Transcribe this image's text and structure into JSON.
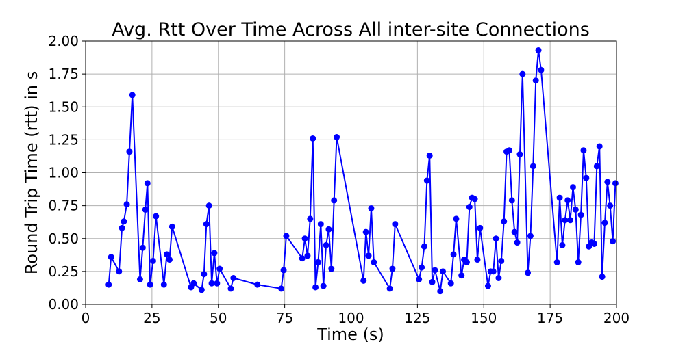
{
  "chart_data": {
    "type": "line",
    "title": "Avg. Rtt Over Time Across All inter-site Connections",
    "xlabel": "Time (s)",
    "ylabel": "Round Trip Time (rtt) in s",
    "xlim": [
      0,
      200
    ],
    "ylim": [
      0,
      2.0
    ],
    "x_ticks": [
      0,
      25,
      50,
      75,
      100,
      125,
      150,
      175,
      200
    ],
    "x_tick_labels": [
      "0",
      "25",
      "50",
      "75",
      "100",
      "125",
      "150",
      "175",
      "200"
    ],
    "y_ticks": [
      0,
      0.25,
      0.5,
      0.75,
      1.0,
      1.25,
      1.5,
      1.75,
      2.0
    ],
    "y_tick_labels": [
      "0.00",
      "0.25",
      "0.50",
      "0.75",
      "1.00",
      "1.25",
      "1.50",
      "1.75",
      "2.00"
    ],
    "grid": true,
    "legend": "none",
    "series": [
      {
        "color": "#0000ff",
        "marker": "circle",
        "points": [
          [
            8.7,
            0.15
          ],
          [
            9.6,
            0.36
          ],
          [
            12.6,
            0.25
          ],
          [
            13.7,
            0.58
          ],
          [
            14.4,
            0.63
          ],
          [
            15.5,
            0.76
          ],
          [
            16.5,
            1.16
          ],
          [
            17.6,
            1.59
          ],
          [
            20.5,
            0.19
          ],
          [
            21.5,
            0.43
          ],
          [
            22.5,
            0.72
          ],
          [
            23.3,
            0.92
          ],
          [
            24.3,
            0.15
          ],
          [
            25.4,
            0.33
          ],
          [
            26.5,
            0.67
          ],
          [
            29.5,
            0.15
          ],
          [
            30.6,
            0.38
          ],
          [
            31.6,
            0.34
          ],
          [
            32.6,
            0.59
          ],
          [
            39.7,
            0.13
          ],
          [
            40.7,
            0.16
          ],
          [
            43.7,
            0.11
          ],
          [
            44.6,
            0.23
          ],
          [
            45.5,
            0.61
          ],
          [
            46.5,
            0.75
          ],
          [
            47.5,
            0.16
          ],
          [
            48.5,
            0.39
          ],
          [
            49.5,
            0.16
          ],
          [
            50.5,
            0.27
          ],
          [
            54.7,
            0.12
          ],
          [
            55.7,
            0.2
          ],
          [
            64.7,
            0.15
          ],
          [
            73.7,
            0.12
          ],
          [
            74.6,
            0.26
          ],
          [
            75.6,
            0.52
          ],
          [
            81.6,
            0.35
          ],
          [
            82.6,
            0.5
          ],
          [
            83.6,
            0.37
          ],
          [
            84.6,
            0.65
          ],
          [
            85.6,
            1.26
          ],
          [
            86.6,
            0.13
          ],
          [
            87.6,
            0.32
          ],
          [
            88.6,
            0.61
          ],
          [
            89.6,
            0.14
          ],
          [
            90.6,
            0.45
          ],
          [
            91.6,
            0.57
          ],
          [
            92.6,
            0.27
          ],
          [
            93.6,
            0.79
          ],
          [
            94.6,
            1.27
          ],
          [
            104.7,
            0.18
          ],
          [
            105.6,
            0.55
          ],
          [
            106.6,
            0.37
          ],
          [
            107.6,
            0.73
          ],
          [
            108.6,
            0.32
          ],
          [
            114.6,
            0.12
          ],
          [
            115.6,
            0.27
          ],
          [
            116.6,
            0.61
          ],
          [
            125.6,
            0.19
          ],
          [
            126.6,
            0.28
          ],
          [
            127.6,
            0.44
          ],
          [
            128.6,
            0.94
          ],
          [
            129.6,
            1.13
          ],
          [
            130.6,
            0.17
          ],
          [
            131.6,
            0.26
          ],
          [
            133.6,
            0.1
          ],
          [
            134.6,
            0.25
          ],
          [
            137.6,
            0.16
          ],
          [
            138.6,
            0.38
          ],
          [
            139.6,
            0.65
          ],
          [
            141.6,
            0.22
          ],
          [
            142.6,
            0.34
          ],
          [
            143.6,
            0.32
          ],
          [
            144.6,
            0.74
          ],
          [
            145.6,
            0.81
          ],
          [
            146.6,
            0.8
          ],
          [
            147.6,
            0.34
          ],
          [
            148.6,
            0.58
          ],
          [
            151.6,
            0.14
          ],
          [
            152.6,
            0.25
          ],
          [
            153.6,
            0.25
          ],
          [
            154.6,
            0.5
          ],
          [
            155.6,
            0.2
          ],
          [
            156.6,
            0.33
          ],
          [
            157.6,
            0.63
          ],
          [
            158.6,
            1.16
          ],
          [
            159.6,
            1.17
          ],
          [
            160.6,
            0.79
          ],
          [
            161.6,
            0.55
          ],
          [
            162.6,
            0.47
          ],
          [
            163.6,
            1.14
          ],
          [
            164.6,
            1.75
          ],
          [
            166.6,
            0.24
          ],
          [
            167.6,
            0.52
          ],
          [
            168.6,
            1.05
          ],
          [
            169.6,
            1.7
          ],
          [
            170.6,
            1.93
          ],
          [
            171.6,
            1.78
          ],
          [
            177.6,
            0.32
          ],
          [
            178.6,
            0.81
          ],
          [
            179.6,
            0.45
          ],
          [
            180.6,
            0.64
          ],
          [
            181.6,
            0.79
          ],
          [
            182.6,
            0.64
          ],
          [
            183.6,
            0.89
          ],
          [
            184.6,
            0.72
          ],
          [
            185.6,
            0.32
          ],
          [
            186.6,
            0.68
          ],
          [
            187.6,
            1.17
          ],
          [
            188.6,
            0.96
          ],
          [
            189.6,
            0.44
          ],
          [
            190.6,
            0.47
          ],
          [
            191.6,
            0.46
          ],
          [
            192.6,
            1.05
          ],
          [
            193.6,
            1.2
          ],
          [
            194.6,
            0.21
          ],
          [
            195.6,
            0.62
          ],
          [
            196.6,
            0.93
          ],
          [
            197.6,
            0.75
          ],
          [
            198.6,
            0.48
          ],
          [
            199.6,
            0.92
          ]
        ]
      }
    ]
  }
}
